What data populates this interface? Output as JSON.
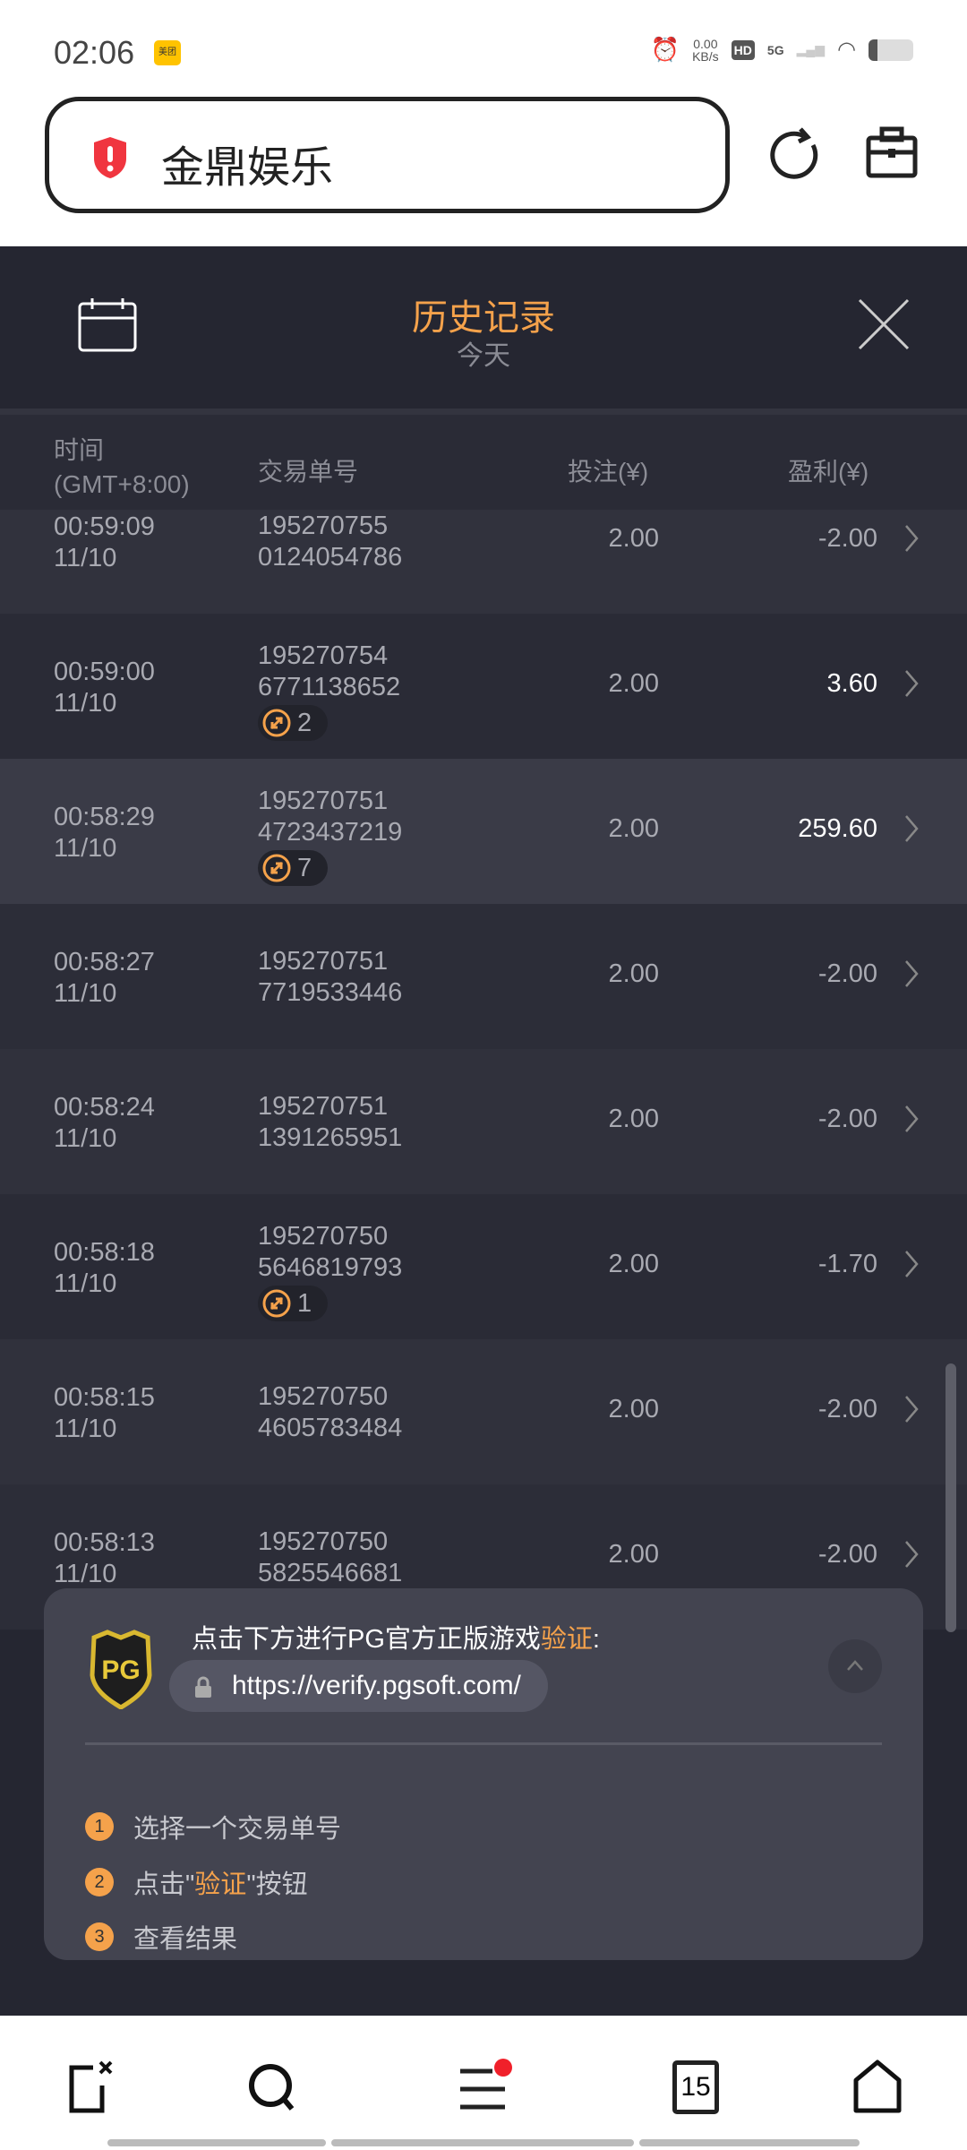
{
  "status": {
    "time": "02:06",
    "app_badge": "美团",
    "net_speed": "0.00",
    "net_unit": "KB/s",
    "hd": "HD",
    "network": "5G"
  },
  "browser": {
    "title": "金鼎娱乐",
    "security_icon": "warning-shield-icon",
    "reload_icon": "reload-icon",
    "toolbox_icon": "toolbox-icon"
  },
  "history": {
    "title": "历史记录",
    "subtitle": "今天",
    "accent": "#f5a24b",
    "columns": {
      "time": "时间",
      "tz": "(GMT+8:00)",
      "id": "交易单号",
      "bet": "投注(¥)",
      "profit": "盈利(¥)"
    },
    "rows": [
      {
        "time": "00:59:09",
        "date": "11/10",
        "id1": "195270755",
        "id2": "0124054786",
        "bet": "2.00",
        "profit": "-2.00"
      },
      {
        "time": "00:59:00",
        "date": "11/10",
        "id1": "195270754",
        "id2": "6771138652",
        "badge": "2",
        "bet": "2.00",
        "profit": "3.60"
      },
      {
        "time": "00:58:29",
        "date": "11/10",
        "id1": "195270751",
        "id2": "4723437219",
        "badge": "7",
        "bet": "2.00",
        "profit": "259.60"
      },
      {
        "time": "00:58:27",
        "date": "11/10",
        "id1": "195270751",
        "id2": "7719533446",
        "bet": "2.00",
        "profit": "-2.00"
      },
      {
        "time": "00:58:24",
        "date": "11/10",
        "id1": "195270751",
        "id2": "1391265951",
        "bet": "2.00",
        "profit": "-2.00"
      },
      {
        "time": "00:58:18",
        "date": "11/10",
        "id1": "195270750",
        "id2": "5646819793",
        "badge": "1",
        "bet": "2.00",
        "profit": "-1.70"
      },
      {
        "time": "00:58:15",
        "date": "11/10",
        "id1": "195270750",
        "id2": "4605783484",
        "bet": "2.00",
        "profit": "-2.00"
      },
      {
        "time": "00:58:13",
        "date": "11/10",
        "id1": "195270750",
        "id2": "5825546681",
        "bet": "2.00",
        "profit": "-2.00"
      }
    ]
  },
  "verify": {
    "logo": "PG",
    "head": "点击下方进行PG官方正版游戏",
    "head_hl": "验证",
    "head_colon": ":",
    "url": "https://verify.pgsoft.com/",
    "steps": [
      {
        "n": "1",
        "pre": "选择一个交易单号"
      },
      {
        "n": "2",
        "pre": "点击\"",
        "hl": "验证",
        "post": "\"按钮"
      },
      {
        "n": "3",
        "pre": "查看结果"
      }
    ]
  },
  "nav": {
    "tabs_count": "15"
  }
}
